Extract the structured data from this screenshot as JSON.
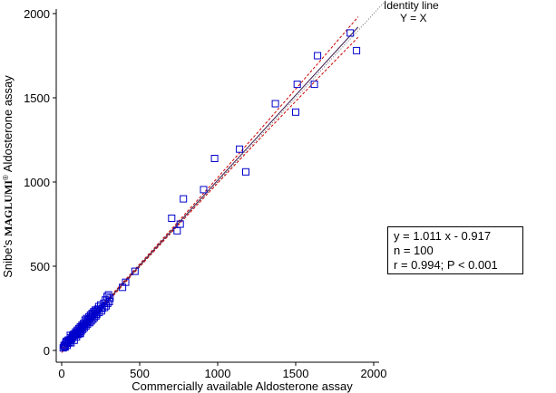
{
  "chart_data": {
    "type": "scatter",
    "xlabel": "Commercially available Aldosterone assay",
    "ylabel_prefix": "Snibe's ",
    "ylabel_brand": "MAGLUMI",
    "ylabel_reg": "®",
    "ylabel_suffix": " Aldosterone assay",
    "xlim": [
      -30,
      2000
    ],
    "ylim": [
      -40,
      2000
    ],
    "xticks": [
      0,
      500,
      1000,
      1500,
      2000
    ],
    "yticks": [
      0,
      500,
      1000,
      1500,
      2000
    ],
    "grid": false,
    "identity_label_1": "Identity line",
    "identity_label_2": "Y = X",
    "regression": {
      "slope": 1.011,
      "intercept": -0.917
    },
    "stats": {
      "equation": "y = 1.011 x - 0.917",
      "n": "n = 100",
      "r_p": "r = 0.994; P < 0.001"
    },
    "colors": {
      "points": "#0000cc",
      "regression": "#8b1a1a",
      "ci": "#cc0000",
      "identity": "#666666"
    },
    "points": [
      [
        10,
        15
      ],
      [
        18,
        25
      ],
      [
        25,
        40
      ],
      [
        30,
        55
      ],
      [
        35,
        30
      ],
      [
        42,
        62
      ],
      [
        50,
        50
      ],
      [
        55,
        75
      ],
      [
        60,
        45
      ],
      [
        65,
        70
      ],
      [
        70,
        85
      ],
      [
        75,
        95
      ],
      [
        80,
        60
      ],
      [
        85,
        100
      ],
      [
        90,
        110
      ],
      [
        95,
        80
      ],
      [
        100,
        120
      ],
      [
        105,
        95
      ],
      [
        110,
        130
      ],
      [
        115,
        105
      ],
      [
        120,
        140
      ],
      [
        125,
        115
      ],
      [
        130,
        150
      ],
      [
        135,
        125
      ],
      [
        140,
        160
      ],
      [
        145,
        135
      ],
      [
        150,
        180
      ],
      [
        155,
        145
      ],
      [
        160,
        190
      ],
      [
        165,
        155
      ],
      [
        170,
        170
      ],
      [
        175,
        200
      ],
      [
        180,
        165
      ],
      [
        185,
        210
      ],
      [
        190,
        175
      ],
      [
        195,
        220
      ],
      [
        200,
        185
      ],
      [
        205,
        230
      ],
      [
        210,
        195
      ],
      [
        215,
        240
      ],
      [
        220,
        205
      ],
      [
        225,
        215
      ],
      [
        230,
        245
      ],
      [
        240,
        225
      ],
      [
        250,
        270
      ],
      [
        255,
        235
      ],
      [
        260,
        250
      ],
      [
        270,
        280
      ],
      [
        275,
        255
      ],
      [
        280,
        300
      ],
      [
        285,
        265
      ],
      [
        290,
        320
      ],
      [
        295,
        280
      ],
      [
        300,
        330
      ],
      [
        305,
        290
      ],
      [
        310,
        310
      ],
      [
        15,
        30
      ],
      [
        22,
        20
      ],
      [
        28,
        48
      ],
      [
        38,
        42
      ],
      [
        46,
        58
      ],
      [
        58,
        66
      ],
      [
        68,
        78
      ],
      [
        78,
        88
      ],
      [
        88,
        92
      ],
      [
        98,
        104
      ],
      [
        108,
        112
      ],
      [
        118,
        128
      ],
      [
        128,
        134
      ],
      [
        138,
        146
      ],
      [
        148,
        158
      ],
      [
        158,
        170
      ],
      [
        168,
        182
      ],
      [
        178,
        186
      ],
      [
        188,
        198
      ],
      [
        198,
        212
      ],
      [
        208,
        222
      ],
      [
        218,
        232
      ],
      [
        228,
        238
      ],
      [
        238,
        260
      ],
      [
        390,
        375
      ],
      [
        410,
        405
      ],
      [
        470,
        470
      ],
      [
        705,
        785
      ],
      [
        740,
        710
      ],
      [
        760,
        750
      ],
      [
        780,
        900
      ],
      [
        910,
        955
      ],
      [
        980,
        1140
      ],
      [
        1140,
        1195
      ],
      [
        1180,
        1060
      ],
      [
        1370,
        1465
      ],
      [
        1500,
        1415
      ],
      [
        1510,
        1580
      ],
      [
        1620,
        1580
      ],
      [
        1640,
        1750
      ],
      [
        1850,
        1885
      ],
      [
        1890,
        1780
      ],
      [
        55,
        90
      ],
      [
        120,
        100
      ]
    ]
  }
}
